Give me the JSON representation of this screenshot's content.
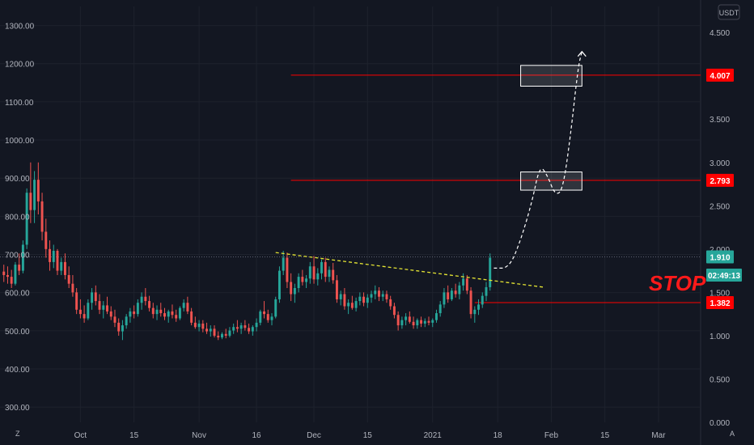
{
  "chart_data": {
    "type": "candlestick",
    "currency_label": "USDT",
    "left_axis": {
      "min": 260,
      "max": 1350,
      "ticks": [
        "1300.00",
        "1200.00",
        "1100.00",
        "1000.00",
        "900.00",
        "800.00",
        "700.00",
        "600.00",
        "500.00",
        "400.00",
        "300.00"
      ]
    },
    "right_axis": {
      "min": 0,
      "max": 4.8,
      "ticks": [
        "4.500",
        "4.000",
        "3.500",
        "3.000",
        "2.500",
        "2.000",
        "1.500",
        "1.000",
        "0.500",
        "0.000"
      ]
    },
    "x_ticks": [
      "Oct",
      "15",
      "Nov",
      "16",
      "Dec",
      "15",
      "2021",
      "18",
      "Feb",
      "15",
      "Mar"
    ],
    "x_range": {
      "start": "2020-09-10",
      "end": "2021-03-12"
    },
    "tick_dates": [
      "2020-10-01",
      "2020-10-15",
      "2020-11-01",
      "2020-11-16",
      "2020-12-01",
      "2020-12-15",
      "2021-01-01",
      "2021-01-18",
      "2021-02-01",
      "2021-02-15",
      "2021-03-01"
    ],
    "price_tags": [
      {
        "label": "4.007",
        "value": 4.007,
        "color": "#ff0000"
      },
      {
        "label": "2.793",
        "value": 2.793,
        "color": "#ff0000"
      },
      {
        "label": "1.910",
        "value": 1.91,
        "color": "#26a69a"
      },
      {
        "label": "02:49:13",
        "value": 1.7,
        "color": "#26a69a"
      },
      {
        "label": "1.382",
        "value": 1.382,
        "color": "#ff0000"
      }
    ],
    "horizontal_lines": [
      {
        "value": 4.007,
        "from": "2020-11-25",
        "color": "#ff0000"
      },
      {
        "value": 2.793,
        "from": "2020-11-25",
        "color": "#ff0000"
      },
      {
        "value": 1.382,
        "from": "2021-01-12",
        "color": "#ff0000"
      },
      {
        "value": 1.91,
        "from": "2020-09-10",
        "color": "#5d6070",
        "dotted": true
      }
    ],
    "target_boxes": [
      {
        "from": "2021-01-24",
        "to": "2021-02-09",
        "low": 3.88,
        "high": 4.12
      },
      {
        "from": "2021-01-24",
        "to": "2021-02-09",
        "low": 2.68,
        "high": 2.89
      }
    ],
    "trendline": {
      "from": [
        "2020-11-21",
        1.96
      ],
      "to": [
        "2021-01-30",
        1.56
      ]
    },
    "projection_path": [
      [
        "2021-01-17",
        1.78
      ],
      [
        "2021-01-21",
        1.78
      ],
      [
        "2021-01-24",
        2.1
      ],
      [
        "2021-01-27",
        2.55
      ],
      [
        "2021-01-29",
        2.97
      ],
      [
        "2021-01-31",
        2.85
      ],
      [
        "2021-02-02",
        2.62
      ],
      [
        "2021-02-04",
        2.68
      ],
      [
        "2021-02-06",
        3.3
      ],
      [
        "2021-02-08",
        4.1
      ],
      [
        "2021-02-09",
        4.28
      ]
    ],
    "stop_label": "STOP",
    "candles": [
      [
        "2020-09-11",
        1.74,
        1.82,
        1.62,
        1.7
      ],
      [
        "2020-09-12",
        1.7,
        1.8,
        1.6,
        1.68
      ],
      [
        "2020-09-13",
        1.68,
        1.76,
        1.55,
        1.6
      ],
      [
        "2020-09-14",
        1.6,
        1.85,
        1.58,
        1.82
      ],
      [
        "2020-09-15",
        1.82,
        1.95,
        1.7,
        1.75
      ],
      [
        "2020-09-16",
        1.75,
        2.1,
        1.72,
        2.05
      ],
      [
        "2020-09-17",
        2.05,
        2.7,
        2.0,
        2.65
      ],
      [
        "2020-09-18",
        2.65,
        3.0,
        2.3,
        2.45
      ],
      [
        "2020-09-19",
        2.45,
        2.9,
        2.3,
        2.8
      ],
      [
        "2020-09-20",
        2.8,
        3.0,
        2.4,
        2.55
      ],
      [
        "2020-09-21",
        2.55,
        2.65,
        2.1,
        2.2
      ],
      [
        "2020-09-22",
        2.2,
        2.35,
        1.9,
        2.0
      ],
      [
        "2020-09-23",
        2.0,
        2.1,
        1.75,
        1.85
      ],
      [
        "2020-09-24",
        1.85,
        2.05,
        1.78,
        1.98
      ],
      [
        "2020-09-25",
        1.98,
        2.0,
        1.7,
        1.75
      ],
      [
        "2020-09-26",
        1.75,
        1.9,
        1.7,
        1.85
      ],
      [
        "2020-09-27",
        1.85,
        1.95,
        1.65,
        1.7
      ],
      [
        "2020-09-28",
        1.7,
        1.8,
        1.55,
        1.6
      ],
      [
        "2020-09-29",
        1.6,
        1.7,
        1.45,
        1.5
      ],
      [
        "2020-09-30",
        1.5,
        1.55,
        1.25,
        1.3
      ],
      [
        "2020-10-01",
        1.3,
        1.42,
        1.2,
        1.25
      ],
      [
        "2020-10-02",
        1.25,
        1.35,
        1.15,
        1.2
      ],
      [
        "2020-10-03",
        1.2,
        1.42,
        1.18,
        1.38
      ],
      [
        "2020-10-04",
        1.38,
        1.55,
        1.3,
        1.5
      ],
      [
        "2020-10-05",
        1.5,
        1.58,
        1.35,
        1.4
      ],
      [
        "2020-10-06",
        1.4,
        1.48,
        1.25,
        1.3
      ],
      [
        "2020-10-07",
        1.3,
        1.4,
        1.2,
        1.35
      ],
      [
        "2020-10-08",
        1.35,
        1.45,
        1.25,
        1.28
      ],
      [
        "2020-10-09",
        1.28,
        1.34,
        1.18,
        1.22
      ],
      [
        "2020-10-10",
        1.22,
        1.3,
        1.1,
        1.15
      ],
      [
        "2020-10-11",
        1.15,
        1.2,
        1.0,
        1.05
      ],
      [
        "2020-10-12",
        1.05,
        1.18,
        0.95,
        1.12
      ],
      [
        "2020-10-13",
        1.12,
        1.25,
        1.08,
        1.22
      ],
      [
        "2020-10-14",
        1.22,
        1.32,
        1.15,
        1.28
      ],
      [
        "2020-10-15",
        1.28,
        1.35,
        1.2,
        1.25
      ],
      [
        "2020-10-16",
        1.25,
        1.42,
        1.22,
        1.38
      ],
      [
        "2020-10-17",
        1.38,
        1.5,
        1.3,
        1.45
      ],
      [
        "2020-10-18",
        1.45,
        1.55,
        1.35,
        1.4
      ],
      [
        "2020-10-19",
        1.4,
        1.46,
        1.28,
        1.32
      ],
      [
        "2020-10-20",
        1.32,
        1.38,
        1.2,
        1.25
      ],
      [
        "2020-10-21",
        1.25,
        1.35,
        1.18,
        1.3
      ],
      [
        "2020-10-22",
        1.3,
        1.38,
        1.22,
        1.26
      ],
      [
        "2020-10-23",
        1.26,
        1.32,
        1.18,
        1.22
      ],
      [
        "2020-10-24",
        1.22,
        1.3,
        1.15,
        1.28
      ],
      [
        "2020-10-25",
        1.28,
        1.36,
        1.2,
        1.24
      ],
      [
        "2020-10-26",
        1.24,
        1.3,
        1.16,
        1.2
      ],
      [
        "2020-10-27",
        1.2,
        1.34,
        1.18,
        1.32
      ],
      [
        "2020-10-28",
        1.32,
        1.42,
        1.28,
        1.38
      ],
      [
        "2020-10-29",
        1.38,
        1.45,
        1.25,
        1.28
      ],
      [
        "2020-10-30",
        1.28,
        1.32,
        1.12,
        1.15
      ],
      [
        "2020-10-31",
        1.15,
        1.22,
        1.08,
        1.1
      ],
      [
        "2020-11-01",
        1.1,
        1.18,
        1.05,
        1.14
      ],
      [
        "2020-11-02",
        1.14,
        1.18,
        1.04,
        1.08
      ],
      [
        "2020-11-03",
        1.08,
        1.15,
        1.02,
        1.05
      ],
      [
        "2020-11-04",
        1.05,
        1.12,
        0.99,
        1.08
      ],
      [
        "2020-11-05",
        1.08,
        1.12,
        0.98,
        1.0
      ],
      [
        "2020-11-06",
        1.0,
        1.05,
        0.95,
        0.98
      ],
      [
        "2020-11-07",
        0.98,
        1.04,
        0.96,
        1.02
      ],
      [
        "2020-11-08",
        1.02,
        1.08,
        0.97,
        1.0
      ],
      [
        "2020-11-09",
        1.0,
        1.1,
        0.98,
        1.06
      ],
      [
        "2020-11-10",
        1.06,
        1.14,
        1.02,
        1.1
      ],
      [
        "2020-11-11",
        1.1,
        1.18,
        1.04,
        1.08
      ],
      [
        "2020-11-12",
        1.08,
        1.15,
        1.02,
        1.12
      ],
      [
        "2020-11-13",
        1.12,
        1.18,
        1.06,
        1.09
      ],
      [
        "2020-11-14",
        1.09,
        1.14,
        1.02,
        1.05
      ],
      [
        "2020-11-15",
        1.05,
        1.12,
        1.0,
        1.1
      ],
      [
        "2020-11-16",
        1.1,
        1.2,
        1.05,
        1.15
      ],
      [
        "2020-11-17",
        1.15,
        1.3,
        1.12,
        1.28
      ],
      [
        "2020-11-18",
        1.28,
        1.4,
        1.2,
        1.25
      ],
      [
        "2020-11-19",
        1.25,
        1.3,
        1.15,
        1.18
      ],
      [
        "2020-11-20",
        1.18,
        1.26,
        1.12,
        1.22
      ],
      [
        "2020-11-21",
        1.22,
        1.45,
        1.2,
        1.42
      ],
      [
        "2020-11-22",
        1.42,
        1.8,
        1.38,
        1.75
      ],
      [
        "2020-11-23",
        1.75,
        1.98,
        1.7,
        1.9
      ],
      [
        "2020-11-24",
        1.9,
        1.96,
        1.55,
        1.62
      ],
      [
        "2020-11-25",
        1.62,
        1.72,
        1.4,
        1.48
      ],
      [
        "2020-11-26",
        1.48,
        1.6,
        1.38,
        1.55
      ],
      [
        "2020-11-27",
        1.55,
        1.72,
        1.5,
        1.68
      ],
      [
        "2020-11-28",
        1.68,
        1.76,
        1.58,
        1.62
      ],
      [
        "2020-11-29",
        1.62,
        1.7,
        1.55,
        1.66
      ],
      [
        "2020-11-30",
        1.66,
        1.85,
        1.6,
        1.8
      ],
      [
        "2020-12-01",
        1.8,
        1.92,
        1.6,
        1.65
      ],
      [
        "2020-12-02",
        1.65,
        1.78,
        1.58,
        1.72
      ],
      [
        "2020-12-03",
        1.72,
        1.88,
        1.65,
        1.85
      ],
      [
        "2020-12-04",
        1.85,
        1.9,
        1.62,
        1.68
      ],
      [
        "2020-12-05",
        1.68,
        1.8,
        1.62,
        1.76
      ],
      [
        "2020-12-06",
        1.76,
        1.84,
        1.6,
        1.64
      ],
      [
        "2020-12-07",
        1.64,
        1.7,
        1.38,
        1.42
      ],
      [
        "2020-12-08",
        1.42,
        1.52,
        1.35,
        1.48
      ],
      [
        "2020-12-09",
        1.48,
        1.55,
        1.3,
        1.34
      ],
      [
        "2020-12-10",
        1.34,
        1.42,
        1.25,
        1.38
      ],
      [
        "2020-12-11",
        1.38,
        1.46,
        1.3,
        1.32
      ],
      [
        "2020-12-12",
        1.32,
        1.44,
        1.28,
        1.4
      ],
      [
        "2020-12-13",
        1.4,
        1.5,
        1.35,
        1.45
      ],
      [
        "2020-12-14",
        1.45,
        1.5,
        1.34,
        1.38
      ],
      [
        "2020-12-15",
        1.38,
        1.48,
        1.32,
        1.44
      ],
      [
        "2020-12-16",
        1.44,
        1.52,
        1.38,
        1.48
      ],
      [
        "2020-12-17",
        1.48,
        1.58,
        1.42,
        1.52
      ],
      [
        "2020-12-18",
        1.52,
        1.56,
        1.4,
        1.45
      ],
      [
        "2020-12-19",
        1.45,
        1.52,
        1.4,
        1.48
      ],
      [
        "2020-12-20",
        1.48,
        1.52,
        1.38,
        1.42
      ],
      [
        "2020-12-21",
        1.42,
        1.46,
        1.3,
        1.34
      ],
      [
        "2020-12-22",
        1.34,
        1.38,
        1.2,
        1.24
      ],
      [
        "2020-12-23",
        1.24,
        1.28,
        1.06,
        1.12
      ],
      [
        "2020-12-24",
        1.12,
        1.22,
        1.08,
        1.18
      ],
      [
        "2020-12-25",
        1.18,
        1.26,
        1.12,
        1.22
      ],
      [
        "2020-12-26",
        1.22,
        1.28,
        1.14,
        1.16
      ],
      [
        "2020-12-27",
        1.16,
        1.22,
        1.08,
        1.12
      ],
      [
        "2020-12-28",
        1.12,
        1.2,
        1.08,
        1.18
      ],
      [
        "2020-12-29",
        1.18,
        1.22,
        1.1,
        1.14
      ],
      [
        "2020-12-30",
        1.14,
        1.2,
        1.1,
        1.17
      ],
      [
        "2020-12-31",
        1.17,
        1.22,
        1.12,
        1.15
      ],
      [
        "2021-01-01",
        1.15,
        1.2,
        1.1,
        1.18
      ],
      [
        "2021-01-02",
        1.18,
        1.3,
        1.15,
        1.26
      ],
      [
        "2021-01-03",
        1.26,
        1.4,
        1.22,
        1.36
      ],
      [
        "2021-01-04",
        1.36,
        1.55,
        1.32,
        1.5
      ],
      [
        "2021-01-05",
        1.5,
        1.58,
        1.38,
        1.42
      ],
      [
        "2021-01-06",
        1.42,
        1.55,
        1.4,
        1.52
      ],
      [
        "2021-01-07",
        1.52,
        1.6,
        1.44,
        1.48
      ],
      [
        "2021-01-08",
        1.48,
        1.62,
        1.42,
        1.58
      ],
      [
        "2021-01-09",
        1.58,
        1.72,
        1.52,
        1.66
      ],
      [
        "2021-01-10",
        1.66,
        1.7,
        1.48,
        1.52
      ],
      [
        "2021-01-11",
        1.52,
        1.56,
        1.2,
        1.25
      ],
      [
        "2021-01-12",
        1.25,
        1.34,
        1.15,
        1.3
      ],
      [
        "2021-01-13",
        1.3,
        1.42,
        1.24,
        1.36
      ],
      [
        "2021-01-14",
        1.36,
        1.5,
        1.32,
        1.46
      ],
      [
        "2021-01-15",
        1.46,
        1.62,
        1.4,
        1.56
      ],
      [
        "2021-01-16",
        1.56,
        1.95,
        1.52,
        1.9
      ]
    ]
  }
}
